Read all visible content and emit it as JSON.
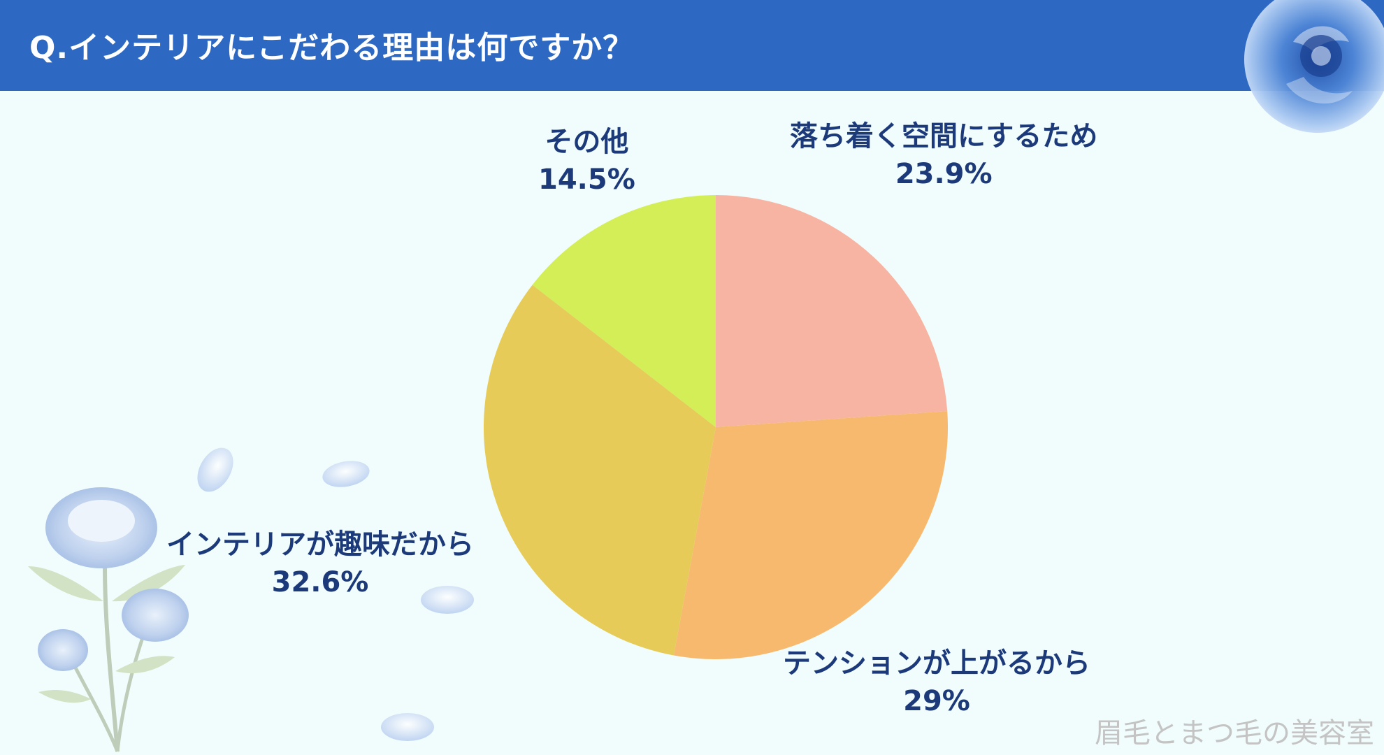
{
  "header": {
    "title": "Q.インテリアにこだわる理由は何ですか？"
  },
  "chart_data": {
    "type": "pie",
    "title": "Q.インテリアにこだわる理由は何ですか？",
    "start_angle_deg": 0,
    "direction": "clockwise",
    "slices": [
      {
        "label": "落ち着く空間にするため",
        "value": 23.9,
        "value_text": "23.9%",
        "color": "#f8b4a2"
      },
      {
        "label": "テンションが上がるから",
        "value": 29,
        "value_text": "29%",
        "color": "#f6b96e"
      },
      {
        "label": "インテリアが趣味だから",
        "value": 32.6,
        "value_text": "32.6%",
        "color": "#e6cb58"
      },
      {
        "label": "その他",
        "value": 14.5,
        "value_text": "14.5%",
        "color": "#d3ee56"
      }
    ]
  },
  "watermark": "眉毛とまつ毛の美容室",
  "colors": {
    "header_bg": "#2d69c3",
    "page_bg": "#f1fdfd",
    "label_text": "#1c3a7a"
  }
}
